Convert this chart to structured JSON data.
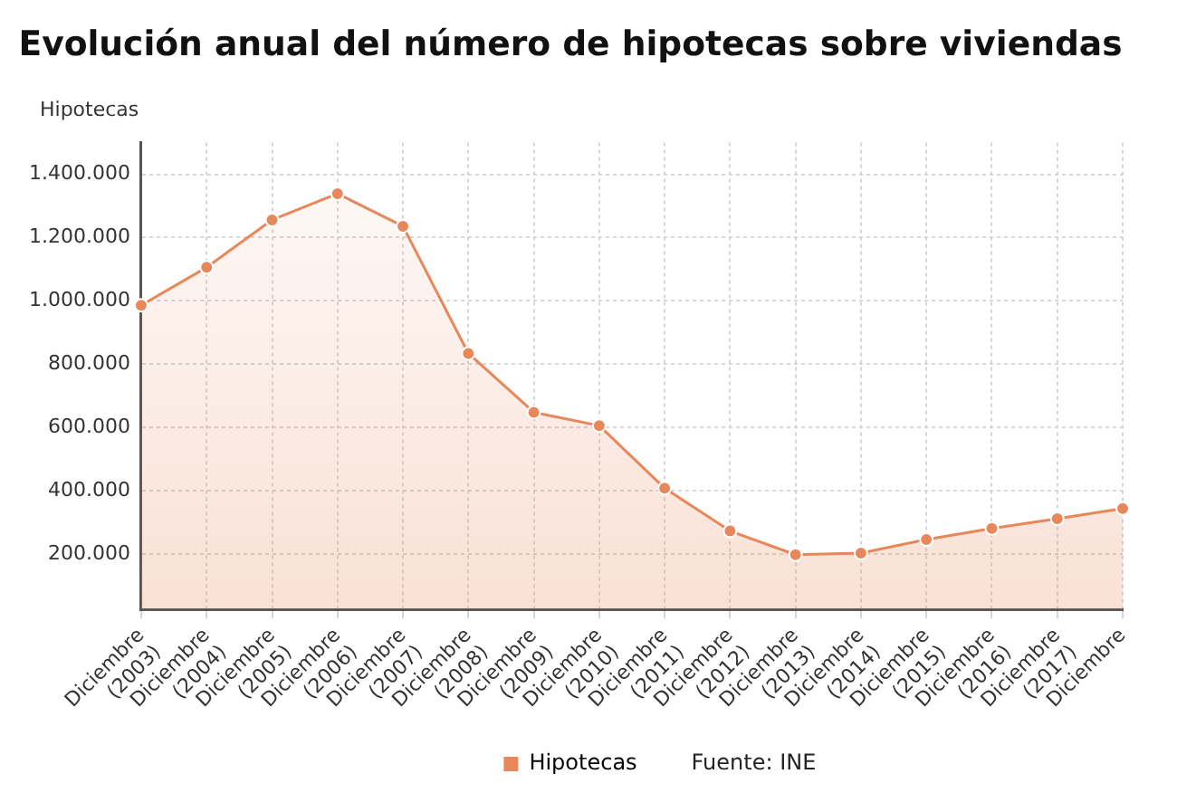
{
  "chart_data": {
    "type": "area",
    "title": "Evolución anual del número de hipotecas sobre viviendas",
    "ylabel": "Hipotecas",
    "categories": [
      "Diciembre (2003)",
      "Diciembre (2004)",
      "Diciembre (2005)",
      "Diciembre (2006)",
      "Diciembre (2007)",
      "Diciembre (2008)",
      "Diciembre (2009)",
      "Diciembre (2010)",
      "Diciembre (2011)",
      "Diciembre (2012)",
      "Diciembre (2013)",
      "Diciembre (2014)",
      "Diciembre (2015)",
      "Diciembre (2016)",
      "Diciembre (2017)",
      "Diciembre"
    ],
    "series": [
      {
        "name": "Hipotecas",
        "color": "#e8875a",
        "values": [
          986000,
          1106000,
          1256000,
          1339000,
          1236000,
          834000,
          648000,
          606000,
          408000,
          273000,
          198000,
          203000,
          246000,
          281000,
          312000,
          344000
        ]
      }
    ],
    "ylim": [
      25000,
      1500000
    ],
    "yticks": [
      {
        "value": 200000,
        "label": "200.000"
      },
      {
        "value": 400000,
        "label": "400.000"
      },
      {
        "value": 600000,
        "label": "600.000"
      },
      {
        "value": 800000,
        "label": "800.000"
      },
      {
        "value": 1000000,
        "label": "1.000.000"
      },
      {
        "value": 1200000,
        "label": "1.200.000"
      },
      {
        "value": 1400000,
        "label": "1.400.000"
      }
    ],
    "grid": true,
    "legend": "bottom",
    "marker": "circle",
    "line_style": "solid",
    "annotations": [
      "Fuente: INE"
    ]
  }
}
